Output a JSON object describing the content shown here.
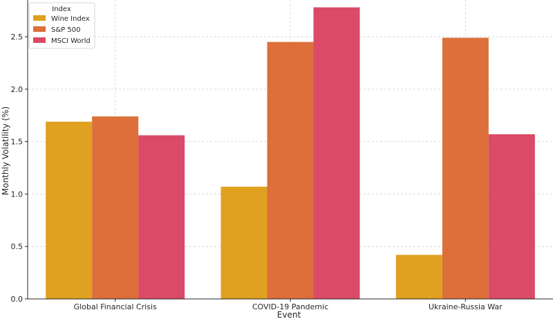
{
  "chart_data": {
    "type": "bar",
    "xlabel": "Event",
    "ylabel": "Monthly Volatility (%)",
    "categories": [
      "Global Financial Crisis",
      "COVID-19 Pandemic",
      "Ukraine-Russia War"
    ],
    "series": [
      {
        "name": "Wine Index",
        "color": "#e0a020",
        "values": [
          1.69,
          1.07,
          0.42
        ]
      },
      {
        "name": "S&P 500",
        "color": "#dc6f3a",
        "values": [
          1.74,
          2.45,
          2.49
        ]
      },
      {
        "name": "MSCI World",
        "color": "#db4a66",
        "values": [
          1.56,
          2.78,
          1.57
        ]
      }
    ],
    "ylim": [
      0,
      2.85
    ],
    "yticks": [
      "0.0",
      "0.5",
      "1.0",
      "1.5",
      "2.0",
      "2.5"
    ],
    "grid": true,
    "legend": {
      "title": "Index",
      "placement": "top-left"
    }
  }
}
